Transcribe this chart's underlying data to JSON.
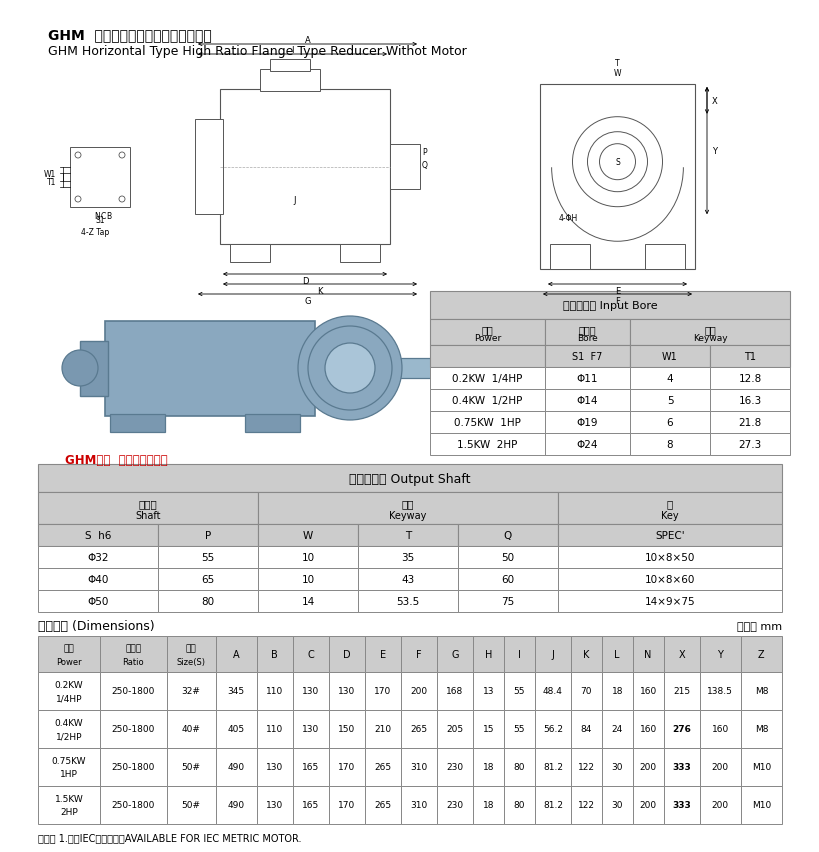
{
  "title_cn": "GHM  臥式高速比入力法蘭齒輪減速機",
  "title_en": "GHM Horizontal Type High Ratio Flange Type Reducer Withot Motor",
  "bg_color": "#ffffff",
  "table_header_bg": "#cccccc",
  "table_bg": "#ffffff",
  "table_border": "#888888",
  "input_bore_title": "入力孔尺寸 Input Bore",
  "input_bore_col1_cn": "功率",
  "input_bore_col1_en": "Power",
  "input_bore_col2_cn": "入力孔",
  "input_bore_col2_en": "Bore",
  "input_bore_col3_cn": "鍵槽",
  "input_bore_col3_en": "Keyway",
  "input_bore_sub2": "S1  F7",
  "input_bore_sub3": "W1",
  "input_bore_sub4": "T1",
  "input_bore_data": [
    [
      "0.2KW  1/4HP",
      "Φ11",
      "4",
      "12.8"
    ],
    [
      "0.4KW  1/2HP",
      "Φ14",
      "5",
      "16.3"
    ],
    [
      "0.75KW  1HP",
      "Φ19",
      "6",
      "21.8"
    ],
    [
      "1.5KW  2HP",
      "Φ24",
      "8",
      "27.3"
    ]
  ],
  "output_shaft_title": "出力軸尺寸 Output Shaft",
  "output_shaft_grp1_cn": "出力軸",
  "output_shaft_grp1_en": "Shaft",
  "output_shaft_grp2_cn": "鍵槽",
  "output_shaft_grp2_en": "Keyway",
  "output_shaft_grp3_cn": "鍵",
  "output_shaft_grp3_en": "Key",
  "output_shaft_col_headers": [
    "S  h6",
    "P",
    "W",
    "T",
    "Q",
    "SPEC'"
  ],
  "output_shaft_data": [
    [
      "Φ32",
      "55",
      "10",
      "35",
      "50",
      "10×8×50"
    ],
    [
      "Φ40",
      "65",
      "10",
      "43",
      "60",
      "10×8×60"
    ],
    [
      "Φ50",
      "80",
      "14",
      "53.5",
      "75",
      "14×9×75"
    ]
  ],
  "dimensions_label": "安裝尺寸 (Dimensions)",
  "unit_label": "單位： mm",
  "dim_col_headers": [
    "功率\nPower",
    "減速比\nRatio",
    "型號\nSize(S)",
    "A",
    "B",
    "C",
    "D",
    "E",
    "F",
    "G",
    "H",
    "I",
    "J",
    "K",
    "L",
    "N",
    "X",
    "Y",
    "Z"
  ],
  "dim_data": [
    [
      "0.2KW\n1/4HP",
      "250-1800",
      "32#",
      "345",
      "110",
      "130",
      "130",
      "170",
      "200",
      "168",
      "13",
      "55",
      "48.4",
      "70",
      "18",
      "160",
      "215",
      "138.5",
      "M8"
    ],
    [
      "0.4KW\n1/2HP",
      "250-1800",
      "40#",
      "405",
      "110",
      "130",
      "150",
      "210",
      "265",
      "205",
      "15",
      "55",
      "56.2",
      "84",
      "24",
      "160",
      "276",
      "160",
      "M8"
    ],
    [
      "0.75KW\n1HP",
      "250-1800",
      "50#",
      "490",
      "130",
      "165",
      "170",
      "265",
      "310",
      "230",
      "18",
      "80",
      "81.2",
      "122",
      "30",
      "200",
      "333",
      "200",
      "M10"
    ],
    [
      "1.5KW\n2HP",
      "250-1800",
      "50#",
      "490",
      "130",
      "165",
      "170",
      "265",
      "310",
      "230",
      "18",
      "80",
      "81.2",
      "122",
      "30",
      "200",
      "333",
      "200",
      "M10"
    ]
  ],
  "note": "備注： 1.配合IEC馬達為主，AVAILABLE FOR IEC METRIC MOTOR.",
  "ghm_label": "GHM臥式  高速比入力法蘭",
  "red_color": "#cc0000",
  "highlight_col_idx": 16,
  "highlight_vals": [
    "276",
    "333"
  ]
}
